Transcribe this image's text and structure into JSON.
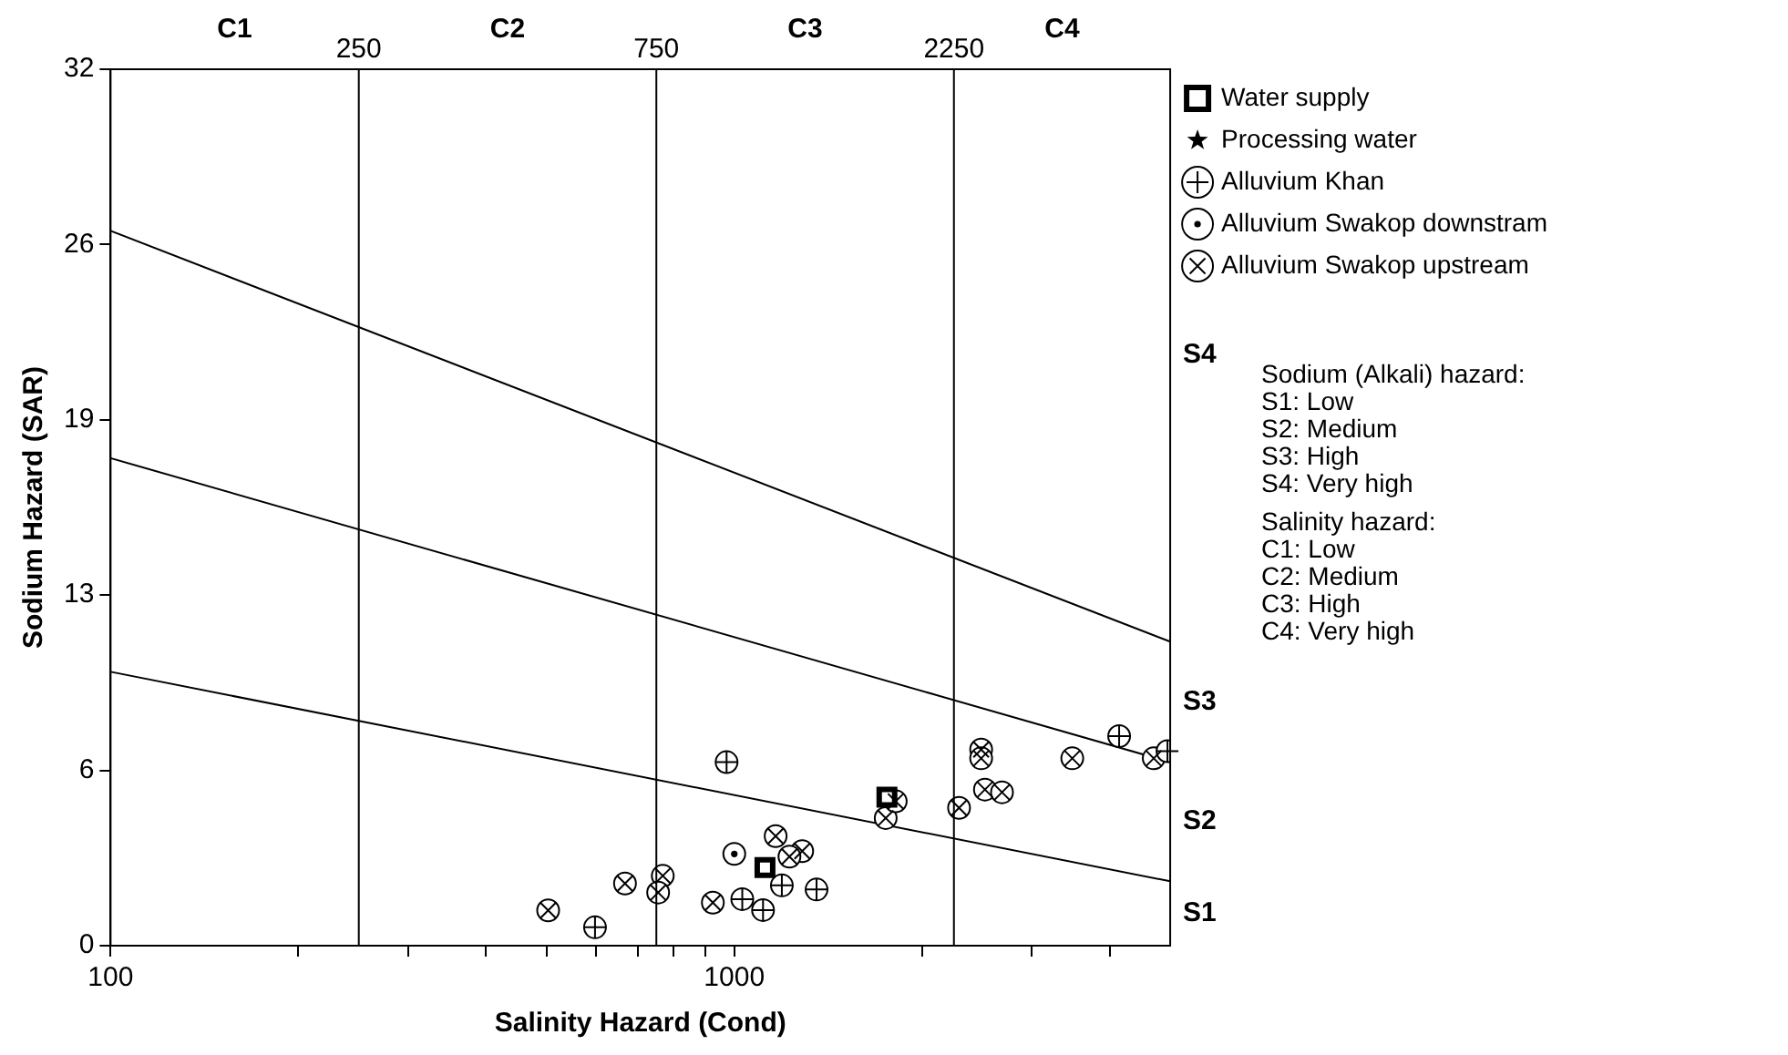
{
  "chart_data": {
    "type": "scatter",
    "xlabel": "Salinity Hazard (Cond)",
    "ylabel": "Sodium Hazard (SAR)",
    "log": "x",
    "xlim": [
      100,
      5000
    ],
    "xticks": [
      100,
      {
        "value": 200,
        "label": null
      },
      {
        "value": 300,
        "label": null
      },
      {
        "value": 400,
        "label": null
      },
      {
        "value": 500,
        "label": null
      },
      {
        "value": 600,
        "label": null
      },
      {
        "value": 700,
        "label": null
      },
      {
        "value": 800,
        "label": null
      },
      {
        "value": 900,
        "label": null
      },
      1000,
      {
        "value": 2000,
        "label": null
      },
      {
        "value": 3000,
        "label": null
      },
      {
        "value": 4000,
        "label": null
      }
    ],
    "ylim": [
      0,
      32
    ],
    "yticks": [
      0,
      {
        "value": 6.4,
        "label": "6"
      },
      {
        "value": 12.8,
        "label": "13"
      },
      {
        "value": 19.2,
        "label": "19"
      },
      {
        "value": 25.6,
        "label": "26"
      },
      32
    ],
    "grid": false,
    "legend": "right",
    "series": [
      {
        "name": "Water supply",
        "color": "#000000",
        "marker": "square",
        "x": [
          1120,
          1757
        ],
        "values": [
          2.85,
          5.42
        ]
      },
      {
        "name": "Processing water",
        "color": "#000000",
        "marker": "star"
      },
      {
        "name": "Alluvium Khan",
        "color": "#000000",
        "marker": "circle-plus",
        "x": [
          972,
          1192,
          1355,
          1030,
          1112,
          598,
          4141,
          4950
        ],
        "values": [
          6.7,
          2.2,
          2.05,
          1.7,
          1.3,
          0.67,
          7.65,
          7.1
        ]
      },
      {
        "name": "Alluvium Swakop downstram",
        "color": "#000000",
        "marker": "circle-dot",
        "x": [
          1000
        ],
        "values": [
          3.35
        ]
      },
      {
        "name": "Alluvium Swakop upstream",
        "color": "#000000",
        "marker": "circle",
        "x": [
          1165,
          1285,
          1226,
          924,
          768,
          755,
          668,
          503,
          1749,
          1815,
          2293,
          2488,
          2488,
          2523,
          2687,
          3483,
          4705
        ],
        "values": [
          4.0,
          3.45,
          3.25,
          1.57,
          2.55,
          1.94,
          2.27,
          1.29,
          4.66,
          5.27,
          5.03,
          7.16,
          6.84,
          5.7,
          5.6,
          6.84,
          6.84
        ]
      },
      {
        "type": "line",
        "color": "#000000",
        "x": [
          100,
          5000
        ],
        "values": [
          10.0,
          2.35
        ]
      },
      {
        "type": "line",
        "color": "#000000",
        "x": [
          100,
          5000
        ],
        "values": [
          17.8,
          6.7
        ]
      },
      {
        "type": "line",
        "color": "#000000",
        "x": [
          100,
          5000
        ],
        "values": [
          26.1,
          11.1
        ]
      }
    ],
    "ref_lines": [
      {
        "axis": "x",
        "value": 250,
        "label": "250"
      },
      {
        "axis": "x",
        "value": 750,
        "label": "750"
      },
      {
        "axis": "x",
        "value": 2250,
        "label": "2250"
      }
    ],
    "annotations": [
      "C1",
      "C2",
      "C3",
      "C4",
      "S4",
      "S3",
      "S2",
      "S1",
      "Sodium (Alkali) hazard:\nS1: Low\nS2: Medium\nS3: High\nS4: Very high",
      "Salinity hazard:\nC1: Low\nC2: Medium\nC3: High\nC4: Very high"
    ]
  }
}
